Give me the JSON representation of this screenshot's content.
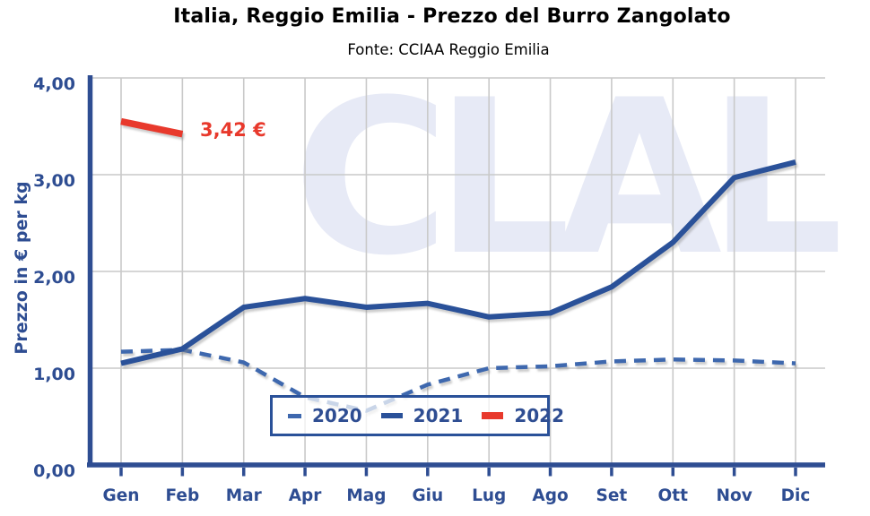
{
  "chart_data": {
    "type": "line",
    "title": "Italia, Reggio Emilia - Prezzo del Burro Zangolato",
    "subtitle": "Fonte: CCIAA Reggio Emilia",
    "ylabel": "Prezzo in € per kg",
    "xlabel": "",
    "categories": [
      "Gen",
      "Feb",
      "Mar",
      "Apr",
      "Mag",
      "Giu",
      "Lug",
      "Ago",
      "Set",
      "Ott",
      "Nov",
      "Dic"
    ],
    "y_ticks": [
      0,
      1,
      2,
      3,
      4
    ],
    "y_tick_labels": [
      "0,00",
      "1,00",
      "2,00",
      "3,00",
      "4,00"
    ],
    "ylim": [
      0,
      4
    ],
    "grid": true,
    "legend_position": "inside-bottom-center",
    "series": [
      {
        "name": "2020",
        "style": "dashed",
        "color": "#3e68ae",
        "values": [
          1.17,
          1.19,
          1.06,
          0.7,
          0.56,
          0.83,
          1.0,
          1.02,
          1.07,
          1.09,
          1.08,
          1.05
        ]
      },
      {
        "name": "2021",
        "style": "solid",
        "color": "#2a5199",
        "values": [
          1.05,
          1.2,
          1.63,
          1.72,
          1.63,
          1.67,
          1.53,
          1.57,
          1.84,
          2.3,
          2.97,
          3.13
        ]
      },
      {
        "name": "2022",
        "style": "solid",
        "color": "#e8392c",
        "values": [
          3.55,
          3.42
        ]
      }
    ],
    "annotation": {
      "text": "3,42 €",
      "series": "2022",
      "at_category": "Feb"
    }
  },
  "watermark": {
    "text": "CLAL"
  },
  "colors": {
    "axis": "#2e4d92",
    "grid": "#c9c9c9",
    "series_2020": "#3e68ae",
    "series_2021": "#2a5199",
    "series_2022": "#e8392c",
    "watermark": "#e7eaf6"
  }
}
